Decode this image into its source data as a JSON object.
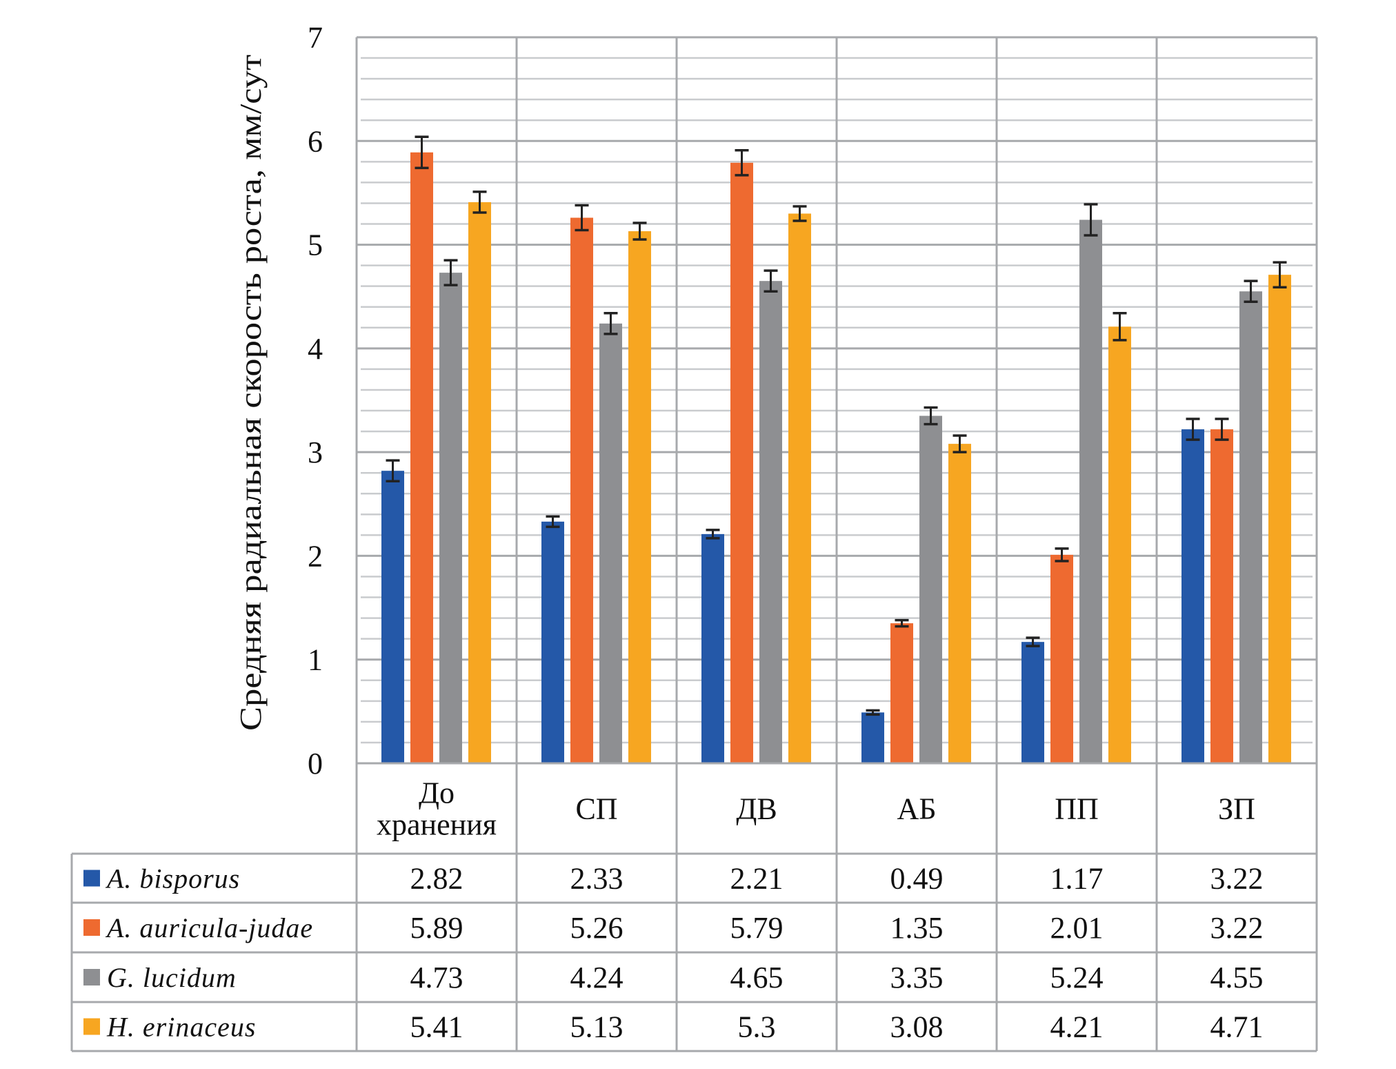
{
  "chart_data": {
    "type": "bar",
    "title": "",
    "xlabel": "",
    "ylabel": "Средняя радиальная скорость роста, мм/сут",
    "ylim": [
      0,
      7
    ],
    "yticks": [
      "0",
      "1",
      "2",
      "3",
      "4",
      "5",
      "6",
      "7"
    ],
    "minor_grid_step": 0.2,
    "grid": true,
    "legend_placement": "data-table-left",
    "categories": [
      "До хранения",
      "СП",
      "ДВ",
      "АБ",
      "ПП",
      "ЗП"
    ],
    "category_lines": [
      [
        "До",
        "хранения"
      ],
      [
        "СП"
      ],
      [
        "ДВ"
      ],
      [
        "АБ"
      ],
      [
        "ПП"
      ],
      [
        "ЗП"
      ]
    ],
    "series": [
      {
        "name": "A. bisporus",
        "color": "#2458A8",
        "values": [
          2.82,
          2.33,
          2.21,
          0.49,
          1.17,
          3.22
        ],
        "labels": [
          "2.82",
          "2.33",
          "2.21",
          "0.49",
          "1.17",
          "3.22"
        ],
        "errors": [
          0.1,
          0.05,
          0.04,
          0.02,
          0.04,
          0.1
        ]
      },
      {
        "name": "A. auricula-judae",
        "color": "#EE6A30",
        "values": [
          5.89,
          5.26,
          5.79,
          1.35,
          2.01,
          3.22
        ],
        "labels": [
          "5.89",
          "5.26",
          "5.79",
          "1.35",
          "2.01",
          "3.22"
        ],
        "errors": [
          0.15,
          0.12,
          0.12,
          0.03,
          0.06,
          0.1
        ]
      },
      {
        "name": "G. lucidum",
        "color": "#8E8F92",
        "values": [
          4.73,
          4.24,
          4.65,
          3.35,
          5.24,
          4.55
        ],
        "labels": [
          "4.73",
          "4.24",
          "4.65",
          "3.35",
          "5.24",
          "4.55"
        ],
        "errors": [
          0.12,
          0.1,
          0.1,
          0.08,
          0.15,
          0.1
        ]
      },
      {
        "name": "H. erinaceus",
        "color": "#F7A621",
        "values": [
          5.41,
          5.13,
          5.3,
          3.08,
          4.21,
          4.71
        ],
        "labels": [
          "5.41",
          "5.13",
          "5.3",
          "3.08",
          "4.21",
          "4.71"
        ],
        "errors": [
          0.1,
          0.08,
          0.07,
          0.08,
          0.13,
          0.12
        ]
      }
    ]
  },
  "colors": {
    "grid_major": "#A7A9AC",
    "grid_minor": "#C9CBCE",
    "error_bar": "#222222"
  }
}
